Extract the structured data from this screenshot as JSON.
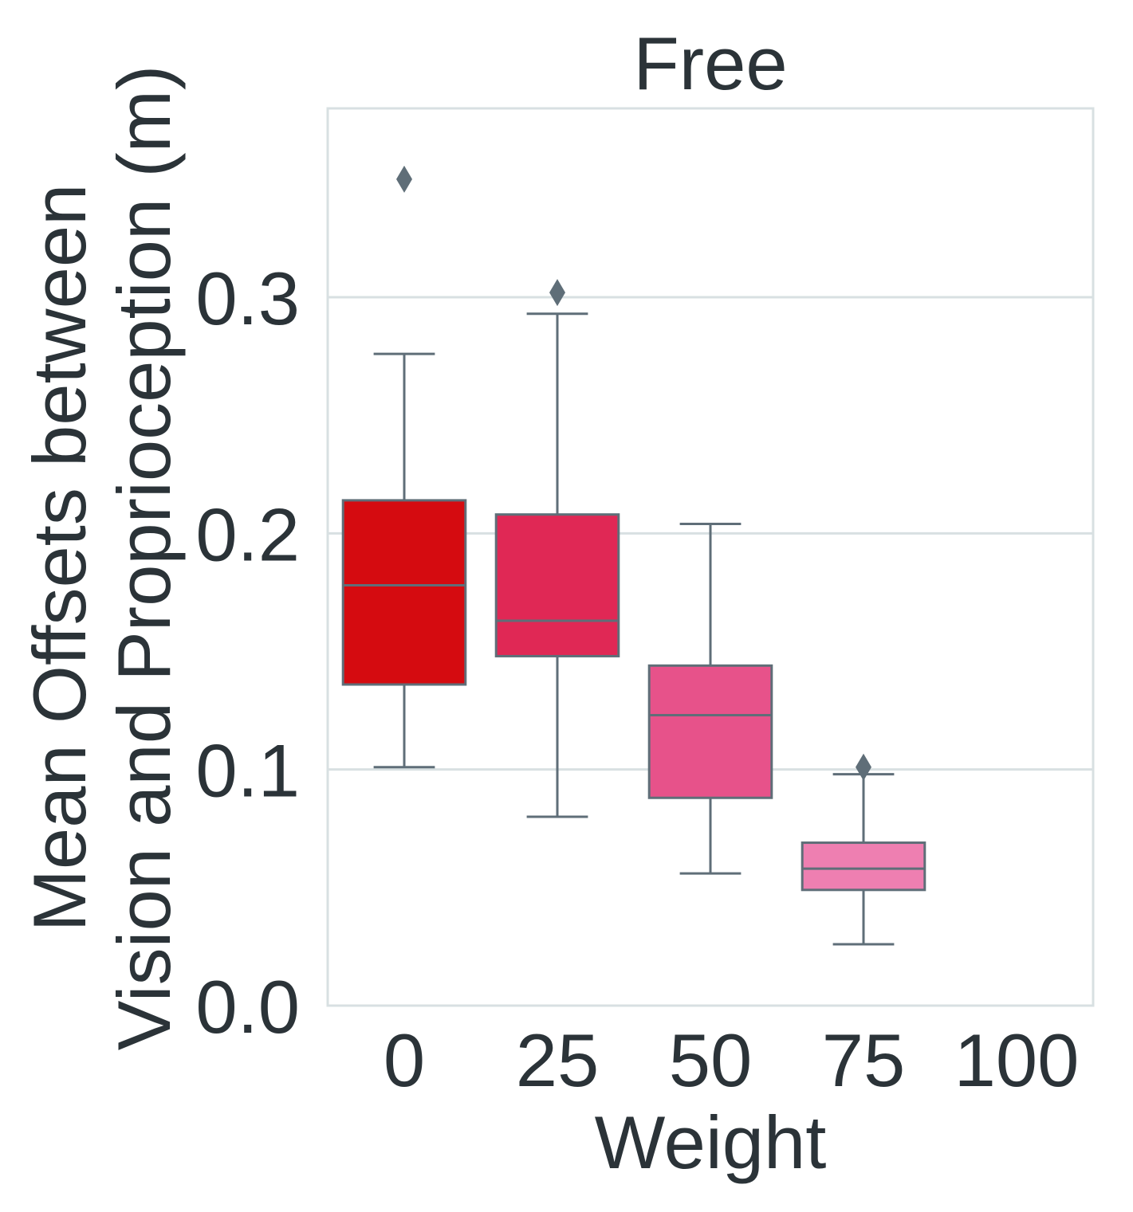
{
  "chart_data": {
    "type": "box",
    "title": "Free",
    "xlabel": "Weight",
    "ylabel_lines": [
      "Mean Offsets between",
      "Vision and Proprioception (m)"
    ],
    "categories": [
      "0",
      "25",
      "50",
      "75",
      "100"
    ],
    "ylim": [
      0.0,
      0.38
    ],
    "yticks": [
      0.0,
      0.1,
      0.2,
      0.3
    ],
    "ytick_labels": [
      "0.0",
      "0.1",
      "0.2",
      "0.3"
    ],
    "grid": true,
    "colors": {
      "box_fill": [
        "#d50b10",
        "#e02855",
        "#e7528a",
        "#ee7fb1"
      ],
      "line": "#5f6e78",
      "grid": "#d8e0e2",
      "text": "#2b3338"
    },
    "boxes": [
      {
        "category": "0",
        "whisker_low": 0.101,
        "q1": 0.136,
        "median": 0.178,
        "q3": 0.214,
        "whisker_high": 0.276,
        "outliers": [
          0.35
        ]
      },
      {
        "category": "25",
        "whisker_low": 0.08,
        "q1": 0.148,
        "median": 0.163,
        "q3": 0.208,
        "whisker_high": 0.293,
        "outliers": [
          0.302
        ]
      },
      {
        "category": "50",
        "whisker_low": 0.056,
        "q1": 0.088,
        "median": 0.123,
        "q3": 0.144,
        "whisker_high": 0.204,
        "outliers": []
      },
      {
        "category": "75",
        "whisker_low": 0.026,
        "q1": 0.049,
        "median": 0.058,
        "q3": 0.069,
        "whisker_high": 0.098,
        "outliers": [
          0.101
        ]
      }
    ]
  }
}
